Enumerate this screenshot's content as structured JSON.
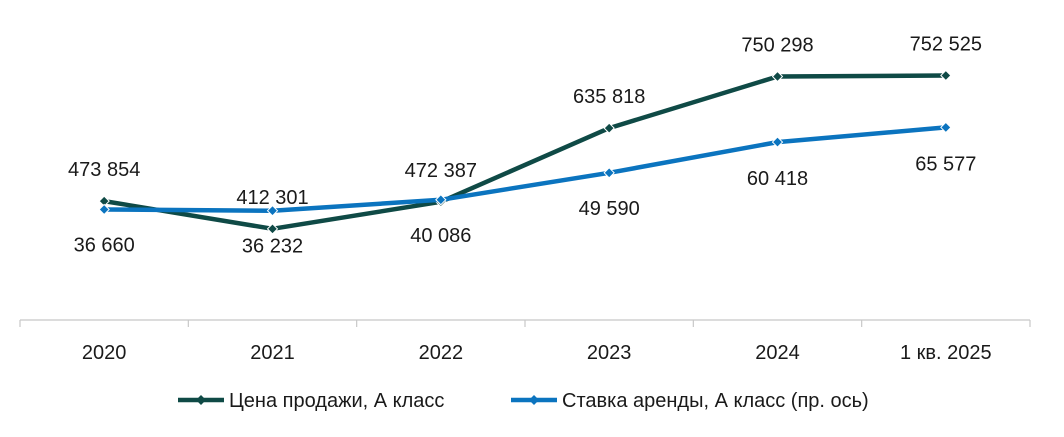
{
  "chart_data": {
    "type": "line",
    "categories": [
      "2020",
      "2021",
      "2022",
      "2023",
      "2024",
      "1 кв. 2025"
    ],
    "series": [
      {
        "name": "Цена продажи, А класс",
        "axis": "primary",
        "values": [
          473854,
          412301,
          472387,
          635818,
          750298,
          752525
        ],
        "labels": [
          "473 854",
          "412 301",
          "472 387",
          "635 818",
          "750 298",
          "752 525"
        ],
        "color": "#0f4a46"
      },
      {
        "name": "Ставка аренды, А класс (пр. ось)",
        "axis": "secondary",
        "values": [
          36660,
          36232,
          40086,
          49590,
          60418,
          65577
        ],
        "labels": [
          "36 660",
          "36 232",
          "40 086",
          "49 590",
          "60 418",
          "65 577"
        ],
        "color": "#0b74bf"
      }
    ],
    "primary_ylim": [
      0,
      1000000
    ],
    "secondary_ylim": [
      0,
      150000
    ],
    "grid": false,
    "legend_position": "bottom"
  }
}
